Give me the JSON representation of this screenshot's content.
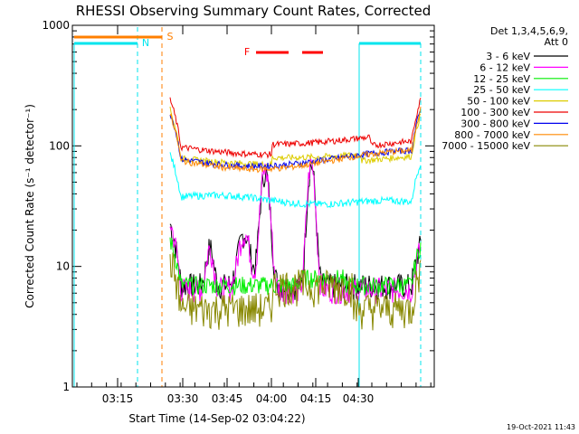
{
  "chart_data": {
    "type": "line",
    "title": "RHESSI Observing Summary Count Rates, Corrected",
    "xlabel": "Start Time (14-Sep-02 03:04:22)",
    "ylabel": "Corrected Count Rate (s⁻¹ detector⁻¹)",
    "y_scale": "log",
    "ylim": [
      1,
      1000
    ],
    "y_ticks": [
      "1",
      "10",
      "100",
      "1000"
    ],
    "x_ticks": [
      "03:15",
      "03:30",
      "03:45",
      "04:00",
      "04:15",
      "04:30"
    ],
    "legend_header": [
      "Det 1,3,4,5,6,9,",
      "Att 0"
    ],
    "legend_position": "right",
    "grid": false,
    "timestamp": "19-Oct-2021 11:43",
    "markers": [
      {
        "label": "N",
        "color": "#00e5ee"
      },
      {
        "label": "S",
        "color": "#ff7f00"
      },
      {
        "label": "F",
        "color": "#ff0000"
      }
    ],
    "series": [
      {
        "name": "3 - 6 keV",
        "color": "#000000"
      },
      {
        "name": "6 - 12 keV",
        "color": "#ff00ff"
      },
      {
        "name": "12 - 25 keV",
        "color": "#00ee00"
      },
      {
        "name": "25 - 50 keV",
        "color": "#00ffff"
      },
      {
        "name": "50 - 100 keV",
        "color": "#ddcc00"
      },
      {
        "name": "100 - 300 keV",
        "color": "#ee0000"
      },
      {
        "name": "300 - 800 keV",
        "color": "#0000ee"
      },
      {
        "name": "800 - 7000 keV",
        "color": "#ff8800"
      },
      {
        "name": "7000 - 15000 keV",
        "color": "#888800"
      }
    ]
  }
}
